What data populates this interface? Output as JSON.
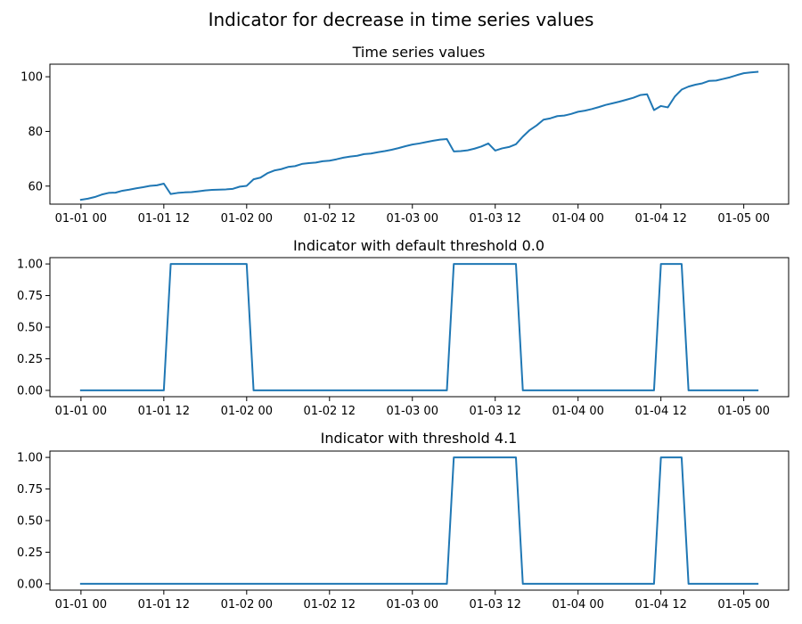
{
  "figure_title": "Indicator for decrease in time series values",
  "chart_data": [
    {
      "type": "line",
      "title": "Time series values",
      "xlabel": "",
      "ylabel": "",
      "x_tick_labels": [
        "01-01 00",
        "01-01 12",
        "01-02 00",
        "01-02 12",
        "01-03 00",
        "01-03 12",
        "01-04 00",
        "01-04 12",
        "01-05 00"
      ],
      "y_ticks": [
        60,
        80,
        100
      ],
      "y_tick_labels": [
        "60",
        "80",
        "100"
      ],
      "ylim": [
        53.4,
        104.6
      ],
      "color": "#1f77b4",
      "points": [
        [
          "01-01 00",
          55.0
        ],
        [
          "01-01 01",
          55.4
        ],
        [
          "01-01 02",
          56.0
        ],
        [
          "01-01 03",
          56.9
        ],
        [
          "01-01 04",
          57.5
        ],
        [
          "01-01 05",
          57.6
        ],
        [
          "01-01 06",
          58.3
        ],
        [
          "01-01 07",
          58.7
        ],
        [
          "01-01 08",
          59.2
        ],
        [
          "01-01 09",
          59.6
        ],
        [
          "01-01 10",
          60.1
        ],
        [
          "01-01 11",
          60.3
        ],
        [
          "01-01 12",
          60.9
        ],
        [
          "01-01 13",
          57.1
        ],
        [
          "01-01 14",
          57.5
        ],
        [
          "01-01 15",
          57.7
        ],
        [
          "01-01 16",
          57.8
        ],
        [
          "01-01 17",
          58.1
        ],
        [
          "01-01 18",
          58.4
        ],
        [
          "01-01 19",
          58.6
        ],
        [
          "01-01 20",
          58.7
        ],
        [
          "01-01 21",
          58.8
        ],
        [
          "01-01 22",
          59.0
        ],
        [
          "01-01 23",
          59.8
        ],
        [
          "01-02 00",
          60.1
        ],
        [
          "01-02 01",
          62.5
        ],
        [
          "01-02 02",
          63.1
        ],
        [
          "01-02 03",
          64.7
        ],
        [
          "01-02 04",
          65.7
        ],
        [
          "01-02 05",
          66.2
        ],
        [
          "01-02 06",
          67.0
        ],
        [
          "01-02 07",
          67.3
        ],
        [
          "01-02 08",
          68.1
        ],
        [
          "01-02 09",
          68.4
        ],
        [
          "01-02 10",
          68.6
        ],
        [
          "01-02 11",
          69.1
        ],
        [
          "01-02 12",
          69.3
        ],
        [
          "01-02 13",
          69.8
        ],
        [
          "01-02 14",
          70.4
        ],
        [
          "01-02 15",
          70.8
        ],
        [
          "01-02 16",
          71.1
        ],
        [
          "01-02 17",
          71.7
        ],
        [
          "01-02 18",
          71.9
        ],
        [
          "01-02 19",
          72.4
        ],
        [
          "01-02 20",
          72.8
        ],
        [
          "01-02 21",
          73.3
        ],
        [
          "01-02 22",
          73.9
        ],
        [
          "01-02 23",
          74.6
        ],
        [
          "01-03 00",
          75.2
        ],
        [
          "01-03 01",
          75.6
        ],
        [
          "01-03 02",
          76.1
        ],
        [
          "01-03 03",
          76.6
        ],
        [
          "01-03 04",
          77.0
        ],
        [
          "01-03 05",
          77.2
        ],
        [
          "01-03 06",
          72.7
        ],
        [
          "01-03 07",
          72.8
        ],
        [
          "01-03 08",
          73.1
        ],
        [
          "01-03 09",
          73.7
        ],
        [
          "01-03 10",
          74.5
        ],
        [
          "01-03 11",
          75.6
        ],
        [
          "01-03 12",
          73.0
        ],
        [
          "01-03 13",
          73.8
        ],
        [
          "01-03 14",
          74.3
        ],
        [
          "01-03 15",
          75.3
        ],
        [
          "01-03 16",
          78.1
        ],
        [
          "01-03 17",
          80.5
        ],
        [
          "01-03 18",
          82.2
        ],
        [
          "01-03 19",
          84.3
        ],
        [
          "01-03 20",
          84.8
        ],
        [
          "01-03 21",
          85.6
        ],
        [
          "01-03 22",
          85.8
        ],
        [
          "01-03 23",
          86.4
        ],
        [
          "01-04 00",
          87.2
        ],
        [
          "01-04 01",
          87.6
        ],
        [
          "01-04 02",
          88.2
        ],
        [
          "01-04 03",
          88.9
        ],
        [
          "01-04 04",
          89.7
        ],
        [
          "01-04 05",
          90.3
        ],
        [
          "01-04 06",
          90.9
        ],
        [
          "01-04 07",
          91.6
        ],
        [
          "01-04 08",
          92.3
        ],
        [
          "01-04 09",
          93.3
        ],
        [
          "01-04 10",
          93.6
        ],
        [
          "01-04 11",
          87.8
        ],
        [
          "01-04 12",
          89.3
        ],
        [
          "01-04 13",
          88.8
        ],
        [
          "01-04 14",
          92.7
        ],
        [
          "01-04 15",
          95.3
        ],
        [
          "01-04 16",
          96.4
        ],
        [
          "01-04 17",
          97.1
        ],
        [
          "01-04 18",
          97.6
        ],
        [
          "01-04 19",
          98.5
        ],
        [
          "01-04 20",
          98.6
        ],
        [
          "01-04 21",
          99.2
        ],
        [
          "01-04 22",
          99.8
        ],
        [
          "01-04 23",
          100.6
        ],
        [
          "01-05 00",
          101.3
        ],
        [
          "01-05 01",
          101.6
        ],
        [
          "01-05 02",
          101.8
        ]
      ]
    },
    {
      "type": "line",
      "title": "Indicator with default threshold 0.0",
      "xlabel": "",
      "ylabel": "",
      "x_tick_labels": [
        "01-01 00",
        "01-01 12",
        "01-02 00",
        "01-02 12",
        "01-03 00",
        "01-03 12",
        "01-04 00",
        "01-04 12",
        "01-05 00"
      ],
      "y_ticks": [
        0.0,
        0.25,
        0.5,
        0.75,
        1.0
      ],
      "y_tick_labels": [
        "0.00",
        "0.25",
        "0.50",
        "0.75",
        "1.00"
      ],
      "ylim": [
        -0.05,
        1.05
      ],
      "color": "#1f77b4",
      "points": [
        [
          "01-01 00",
          0
        ],
        [
          "01-01 12",
          0
        ],
        [
          "01-01 13",
          1
        ],
        [
          "01-02 00",
          1
        ],
        [
          "01-02 01",
          0
        ],
        [
          "01-03 05",
          0
        ],
        [
          "01-03 06",
          1
        ],
        [
          "01-03 15",
          1
        ],
        [
          "01-03 16",
          0
        ],
        [
          "01-04 11",
          0
        ],
        [
          "01-04 12",
          1
        ],
        [
          "01-04 15",
          1
        ],
        [
          "01-04 16",
          0
        ],
        [
          "01-05 02",
          0
        ]
      ]
    },
    {
      "type": "line",
      "title": "Indicator with threshold 4.1",
      "xlabel": "",
      "ylabel": "",
      "x_tick_labels": [
        "01-01 00",
        "01-01 12",
        "01-02 00",
        "01-02 12",
        "01-03 00",
        "01-03 12",
        "01-04 00",
        "01-04 12",
        "01-05 00"
      ],
      "y_ticks": [
        0.0,
        0.25,
        0.5,
        0.75,
        1.0
      ],
      "y_tick_labels": [
        "0.00",
        "0.25",
        "0.50",
        "0.75",
        "1.00"
      ],
      "ylim": [
        -0.05,
        1.05
      ],
      "color": "#1f77b4",
      "points": [
        [
          "01-01 00",
          0
        ],
        [
          "01-03 05",
          0
        ],
        [
          "01-03 06",
          1
        ],
        [
          "01-03 15",
          1
        ],
        [
          "01-03 16",
          0
        ],
        [
          "01-04 11",
          0
        ],
        [
          "01-04 12",
          1
        ],
        [
          "01-04 15",
          1
        ],
        [
          "01-04 16",
          0
        ],
        [
          "01-05 02",
          0
        ]
      ]
    }
  ]
}
